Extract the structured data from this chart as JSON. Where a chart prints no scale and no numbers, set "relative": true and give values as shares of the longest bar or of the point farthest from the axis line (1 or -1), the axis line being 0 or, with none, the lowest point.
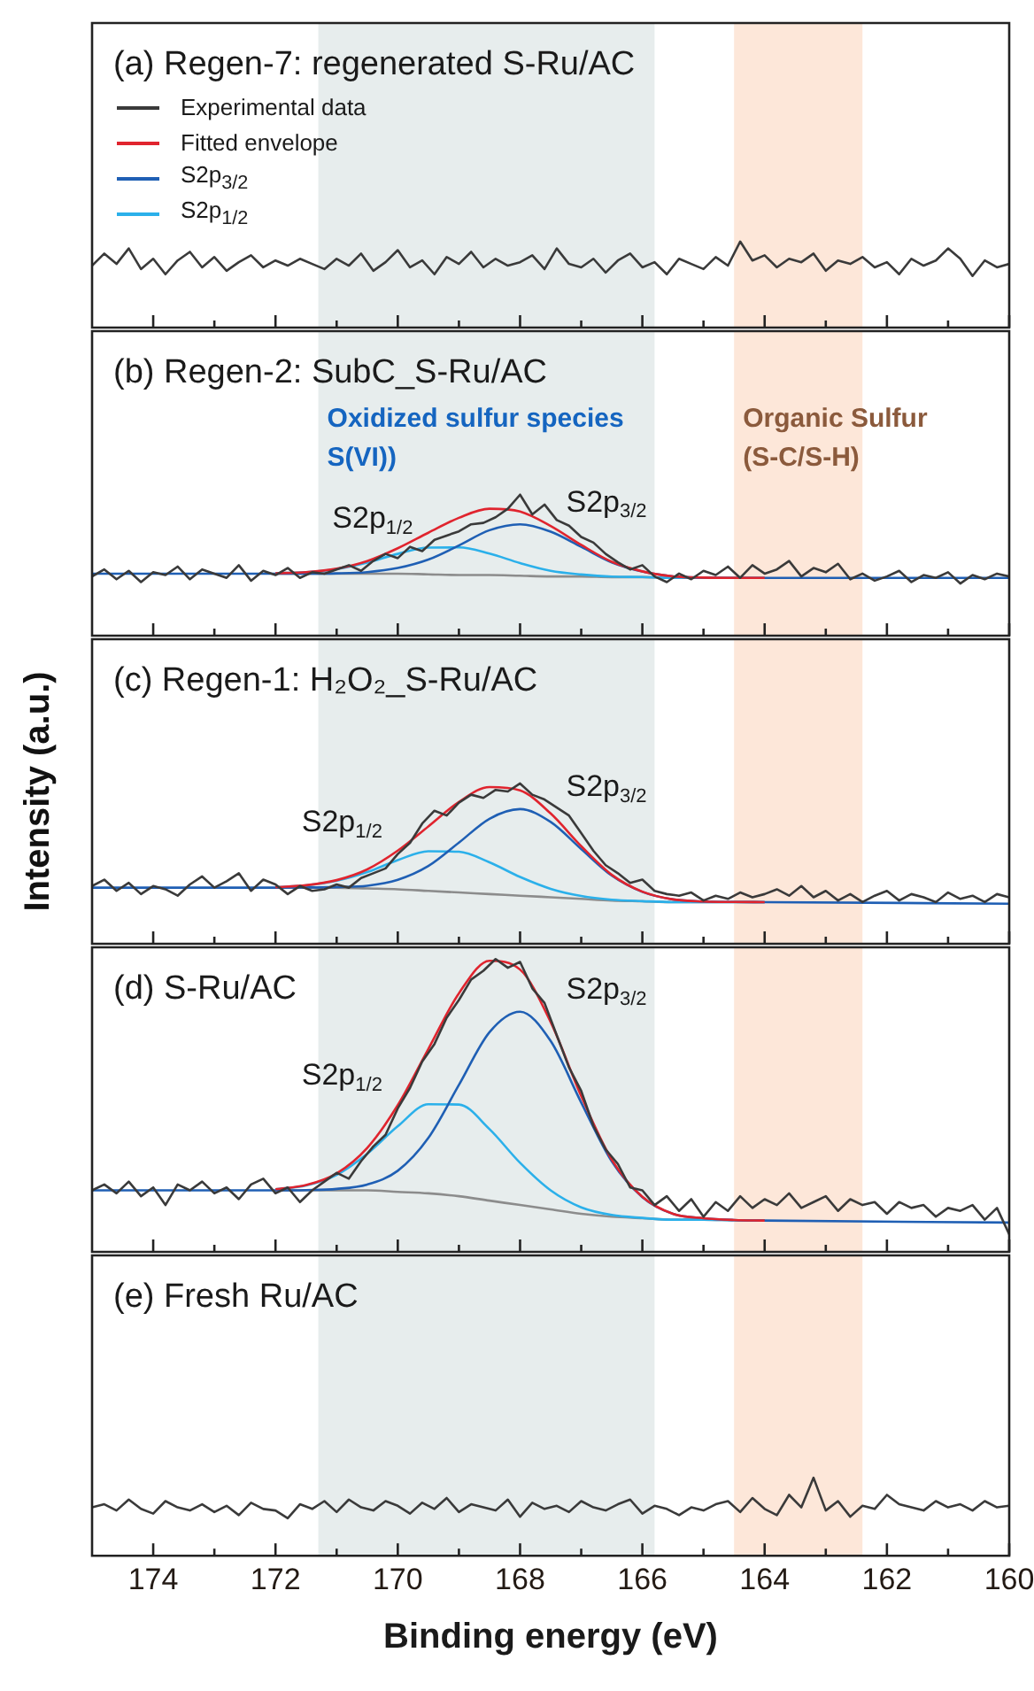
{
  "chart_data": [
    {
      "type": "line",
      "title": "(a) Regen-7: regenerated S-Ru/AC",
      "relative": true,
      "tick_labels": false,
      "x": [
        175,
        174.8,
        174.6,
        174.4,
        174.2,
        174,
        173.8,
        173.6,
        173.4,
        173.2,
        173,
        172.8,
        172.6,
        172.4,
        172.2,
        172,
        171.8,
        171.6,
        171.4,
        171.2,
        171,
        170.8,
        170.6,
        170.4,
        170.2,
        170,
        169.8,
        169.6,
        169.4,
        169.2,
        169,
        168.8,
        168.6,
        168.4,
        168.2,
        168,
        167.8,
        167.6,
        167.4,
        167.2,
        167,
        166.8,
        166.6,
        166.4,
        166.2,
        166,
        165.8,
        165.6,
        165.4,
        165.2,
        165,
        164.8,
        164.6,
        164.4,
        164.2,
        164,
        163.8,
        163.6,
        163.4,
        163.2,
        163,
        162.8,
        162.6,
        162.4,
        162.2,
        162,
        161.8,
        161.6,
        161.4,
        161.2,
        161,
        160.8,
        160.6,
        160.4,
        160.2,
        160
      ],
      "xlim": [
        175,
        160
      ],
      "xticks": [
        174,
        {
          "value": 173,
          "label": null
        },
        172,
        {
          "value": 171,
          "label": null
        },
        170,
        {
          "value": 169,
          "label": null
        },
        168,
        {
          "value": 167,
          "label": null
        },
        166,
        {
          "value": 165,
          "label": null
        },
        164,
        {
          "value": 163,
          "label": null
        },
        162,
        {
          "value": 161,
          "label": null
        },
        160
      ],
      "bands": [
        {
          "axis": "x",
          "from": 171.3,
          "to": 165.8,
          "color": "#e7eded"
        },
        {
          "axis": "x",
          "from": 164.5,
          "to": 162.4,
          "color": "#fde7d9"
        }
      ],
      "series": [
        {
          "color": "#3a3a3a",
          "values": [
            0.72,
            0.86,
            0.74,
            0.92,
            0.68,
            0.8,
            0.62,
            0.78,
            0.88,
            0.7,
            0.82,
            0.66,
            0.76,
            0.84,
            0.7,
            0.78,
            0.72,
            0.8,
            0.74,
            0.68,
            0.8,
            0.72,
            0.86,
            0.66,
            0.76,
            0.9,
            0.7,
            0.78,
            0.62,
            0.82,
            0.74,
            0.88,
            0.7,
            0.8,
            0.72,
            0.76,
            0.84,
            0.68,
            0.92,
            0.74,
            0.7,
            0.8,
            0.64,
            0.78,
            0.86,
            0.7,
            0.76,
            0.62,
            0.8,
            0.74,
            0.68,
            0.82,
            0.72,
            1.0,
            0.78,
            0.84,
            0.7,
            0.8,
            0.76,
            0.86,
            0.66,
            0.78,
            0.74,
            0.82,
            0.7,
            0.76,
            0.62,
            0.8,
            0.72,
            0.78,
            0.92,
            0.8,
            0.6,
            0.78,
            0.7,
            0.74
          ]
        }
      ]
    },
    {
      "type": "line",
      "title": "(b) Regen-2: SubC_S-Ru/AC",
      "relative": true,
      "tick_labels": false,
      "legend": "top left",
      "x": [
        175,
        174.8,
        174.6,
        174.4,
        174.2,
        174,
        173.8,
        173.6,
        173.4,
        173.2,
        173,
        172.8,
        172.6,
        172.4,
        172.2,
        172,
        171.8,
        171.6,
        171.4,
        171.2,
        171,
        170.8,
        170.6,
        170.4,
        170.2,
        170,
        169.8,
        169.6,
        169.4,
        169.2,
        169,
        168.8,
        168.6,
        168.4,
        168.2,
        168,
        167.8,
        167.6,
        167.4,
        167.2,
        167,
        166.8,
        166.6,
        166.4,
        166.2,
        166,
        165.8,
        165.6,
        165.4,
        165.2,
        165,
        164.8,
        164.6,
        164.4,
        164.2,
        164,
        163.8,
        163.6,
        163.4,
        163.2,
        163,
        162.8,
        162.6,
        162.4,
        162.2,
        162,
        161.8,
        161.6,
        161.4,
        161.2,
        161,
        160.8,
        160.6,
        160.4,
        160.2,
        160
      ],
      "xlim": [
        175,
        160
      ],
      "xticks": [
        174,
        {
          "value": 173,
          "label": null
        },
        172,
        {
          "value": 171,
          "label": null
        },
        170,
        {
          "value": 169,
          "label": null
        },
        168,
        {
          "value": 167,
          "label": null
        },
        166,
        {
          "value": 165,
          "label": null
        },
        164,
        {
          "value": 163,
          "label": null
        },
        162,
        {
          "value": 161,
          "label": null
        },
        160
      ],
      "bands": [
        {
          "axis": "x",
          "from": 171.3,
          "to": 165.8,
          "color": "#e7eded",
          "label": "Oxidized sulfur species\nS(VI))"
        },
        {
          "axis": "x",
          "from": 164.5,
          "to": 162.4,
          "color": "#fde7d9",
          "label": "Organic Sulfur\n(S-C/S-H)"
        }
      ],
      "series": [
        {
          "name": "Experimental data",
          "color": "#3a3a3a",
          "values": [
            0.42,
            0.47,
            0.4,
            0.46,
            0.38,
            0.45,
            0.43,
            0.49,
            0.4,
            0.47,
            0.44,
            0.41,
            0.5,
            0.39,
            0.46,
            0.43,
            0.48,
            0.41,
            0.45,
            0.44,
            0.47,
            0.5,
            0.46,
            0.53,
            0.58,
            0.55,
            0.63,
            0.6,
            0.68,
            0.71,
            0.74,
            0.79,
            0.8,
            0.84,
            0.9,
            1.0,
            0.86,
            0.93,
            0.82,
            0.78,
            0.7,
            0.66,
            0.58,
            0.52,
            0.47,
            0.5,
            0.42,
            0.38,
            0.44,
            0.4,
            0.46,
            0.43,
            0.49,
            0.41,
            0.5,
            0.44,
            0.47,
            0.53,
            0.42,
            0.48,
            0.45,
            0.51,
            0.4,
            0.44,
            0.39,
            0.42,
            0.46,
            0.38,
            0.43,
            0.41,
            0.45,
            0.37,
            0.43,
            0.4,
            0.44,
            0.42
          ]
        },
        {
          "name": "Fitted envelope",
          "color": "#e0242e",
          "x": [
            172,
            171.5,
            171,
            170.5,
            170,
            169.5,
            169,
            168.5,
            168,
            167.5,
            167,
            166.5,
            166,
            165.5,
            165,
            164.5,
            164
          ],
          "values": [
            0.443,
            0.451,
            0.475,
            0.529,
            0.62,
            0.73,
            0.836,
            0.9,
            0.88,
            0.778,
            0.644,
            0.524,
            0.456,
            0.421,
            0.412,
            0.41,
            0.41
          ]
        },
        {
          "name": "S2p$_{3/2}$",
          "color": "#1f5fb4",
          "x": [
            175,
            172,
            171.5,
            171,
            170.5,
            170,
            169.5,
            169,
            168.5,
            168,
            167.5,
            167,
            166.5,
            166,
            165.5,
            165,
            164.5,
            164,
            160
          ],
          "values": [
            0.44,
            0.44,
            0.44,
            0.442,
            0.451,
            0.48,
            0.54,
            0.64,
            0.748,
            0.79,
            0.738,
            0.63,
            0.52,
            0.455,
            0.421,
            0.412,
            0.41,
            0.41,
            0.41
          ]
        },
        {
          "name": "S2p$_{1/2}$",
          "color": "#2bb0ea",
          "x": [
            172,
            171.5,
            171,
            170.5,
            170,
            169.5,
            169,
            168.5,
            168,
            167.5,
            167,
            166.5,
            166,
            165.5,
            165
          ],
          "values": [
            0.443,
            0.451,
            0.473,
            0.518,
            0.58,
            0.625,
            0.626,
            0.582,
            0.515,
            0.46,
            0.434,
            0.419,
            0.416,
            0.41,
            0.41
          ]
        },
        {
          "color": "#8c8c8c",
          "x": [
            172,
            171.5,
            171,
            170.5,
            170,
            169.5,
            169,
            168.5,
            168,
            167.5,
            167,
            166.5,
            166,
            165.5,
            165,
            164.5,
            164
          ],
          "values": [
            0.44,
            0.44,
            0.44,
            0.44,
            0.44,
            0.435,
            0.43,
            0.43,
            0.425,
            0.42,
            0.42,
            0.415,
            0.415,
            0.41,
            0.41,
            0.41,
            0.41
          ]
        }
      ]
    },
    {
      "type": "line",
      "title": "(c) Regen-1: H₂O₂_S-Ru/AC",
      "ylabel": "Intensity (a.u.)",
      "relative": true,
      "tick_labels": false,
      "x": [
        175,
        174.8,
        174.6,
        174.4,
        174.2,
        174,
        173.8,
        173.6,
        173.4,
        173.2,
        173,
        172.8,
        172.6,
        172.4,
        172.2,
        172,
        171.8,
        171.6,
        171.4,
        171.2,
        171,
        170.8,
        170.6,
        170.4,
        170.2,
        170,
        169.8,
        169.6,
        169.4,
        169.2,
        169,
        168.8,
        168.6,
        168.4,
        168.2,
        168,
        167.8,
        167.6,
        167.4,
        167.2,
        167,
        166.8,
        166.6,
        166.4,
        166.2,
        166,
        165.8,
        165.6,
        165.4,
        165.2,
        165,
        164.8,
        164.6,
        164.4,
        164.2,
        164,
        163.8,
        163.6,
        163.4,
        163.2,
        163,
        162.8,
        162.6,
        162.4,
        162.2,
        162,
        161.8,
        161.6,
        161.4,
        161.2,
        161,
        160.8,
        160.6,
        160.4,
        160.2,
        160
      ],
      "xlim": [
        175,
        160
      ],
      "xticks": [
        174,
        {
          "value": 173,
          "label": null
        },
        172,
        {
          "value": 171,
          "label": null
        },
        170,
        {
          "value": 169,
          "label": null
        },
        168,
        {
          "value": 167,
          "label": null
        },
        166,
        {
          "value": 165,
          "label": null
        },
        164,
        {
          "value": 163,
          "label": null
        },
        162,
        {
          "value": 161,
          "label": null
        },
        160
      ],
      "bands": [
        {
          "axis": "x",
          "from": 171.3,
          "to": 165.8,
          "color": "#e7eded"
        },
        {
          "axis": "x",
          "from": 164.5,
          "to": 162.4,
          "color": "#fde7d9"
        }
      ],
      "series": [
        {
          "color": "#3a3a3a",
          "values": [
            0.36,
            0.4,
            0.33,
            0.38,
            0.31,
            0.36,
            0.34,
            0.3,
            0.37,
            0.42,
            0.35,
            0.39,
            0.44,
            0.33,
            0.4,
            0.37,
            0.31,
            0.36,
            0.33,
            0.34,
            0.37,
            0.35,
            0.41,
            0.44,
            0.47,
            0.56,
            0.63,
            0.75,
            0.83,
            0.8,
            0.88,
            0.93,
            0.91,
            0.96,
            0.95,
            1.0,
            0.93,
            0.9,
            0.85,
            0.8,
            0.69,
            0.58,
            0.49,
            0.44,
            0.38,
            0.4,
            0.33,
            0.31,
            0.3,
            0.32,
            0.27,
            0.3,
            0.28,
            0.32,
            0.29,
            0.31,
            0.34,
            0.3,
            0.36,
            0.29,
            0.33,
            0.27,
            0.31,
            0.26,
            0.3,
            0.33,
            0.27,
            0.31,
            0.29,
            0.26,
            0.32,
            0.28,
            0.3,
            0.26,
            0.31,
            0.29
          ]
        },
        {
          "color": "#e0242e",
          "x": [
            172,
            171.5,
            171,
            170.5,
            170,
            169.5,
            169,
            168.5,
            168,
            167.5,
            167,
            166.5,
            166,
            165.5,
            165,
            164.5,
            164
          ],
          "values": [
            0.353,
            0.365,
            0.397,
            0.464,
            0.581,
            0.732,
            0.885,
            0.978,
            0.957,
            0.813,
            0.609,
            0.43,
            0.325,
            0.277,
            0.264,
            0.261,
            0.26
          ]
        },
        {
          "name": "S2p$_{3/2}$",
          "color": "#1f5fb4",
          "x": [
            175,
            172,
            171.5,
            171,
            170.5,
            170,
            169.5,
            169,
            168.5,
            168,
            167.5,
            167,
            166.5,
            166,
            165.5,
            165,
            164.5,
            164,
            160
          ],
          "values": [
            0.35,
            0.35,
            0.351,
            0.354,
            0.362,
            0.399,
            0.485,
            0.631,
            0.78,
            0.84,
            0.76,
            0.591,
            0.425,
            0.324,
            0.277,
            0.264,
            0.261,
            0.26,
            0.25
          ]
        },
        {
          "name": "S2p$_{1/2}$",
          "color": "#2bb0ea",
          "x": [
            172,
            171.5,
            171,
            170.5,
            170,
            169.5,
            169,
            168.5,
            168,
            167.5,
            167,
            166.5,
            166,
            165.5,
            165,
            164.5,
            164
          ],
          "values": [
            0.353,
            0.364,
            0.393,
            0.447,
            0.522,
            0.577,
            0.574,
            0.508,
            0.417,
            0.343,
            0.298,
            0.275,
            0.266,
            0.26,
            0.26,
            0.26,
            0.26
          ]
        },
        {
          "color": "#8c8c8c",
          "x": [
            172,
            171.5,
            171,
            170.5,
            170,
            169.5,
            169,
            168.5,
            168,
            167.5,
            167,
            166.5,
            166,
            165.5,
            165,
            164.5,
            164
          ],
          "values": [
            0.35,
            0.35,
            0.35,
            0.345,
            0.34,
            0.33,
            0.32,
            0.31,
            0.3,
            0.29,
            0.28,
            0.27,
            0.265,
            0.26,
            0.26,
            0.26,
            0.26
          ]
        }
      ]
    },
    {
      "type": "line",
      "title": "(d) S-Ru/AC",
      "relative": true,
      "tick_labels": false,
      "x": [
        175,
        174.8,
        174.6,
        174.4,
        174.2,
        174,
        173.8,
        173.6,
        173.4,
        173.2,
        173,
        172.8,
        172.6,
        172.4,
        172.2,
        172,
        171.8,
        171.6,
        171.4,
        171.2,
        171,
        170.8,
        170.6,
        170.4,
        170.2,
        170,
        169.8,
        169.6,
        169.4,
        169.2,
        169,
        168.8,
        168.6,
        168.4,
        168.2,
        168,
        167.8,
        167.6,
        167.4,
        167.2,
        167,
        166.8,
        166.6,
        166.4,
        166.2,
        166,
        165.8,
        165.6,
        165.4,
        165.2,
        165,
        164.8,
        164.6,
        164.4,
        164.2,
        164,
        163.8,
        163.6,
        163.4,
        163.2,
        163,
        162.8,
        162.6,
        162.4,
        162.2,
        162,
        161.8,
        161.6,
        161.4,
        161.2,
        161,
        160.8,
        160.6,
        160.4,
        160.2,
        160
      ],
      "xlim": [
        175,
        160
      ],
      "xticks": [
        174,
        {
          "value": 173,
          "label": null
        },
        172,
        {
          "value": 171,
          "label": null
        },
        170,
        {
          "value": 169,
          "label": null
        },
        168,
        {
          "value": 167,
          "label": null
        },
        166,
        {
          "value": 165,
          "label": null
        },
        164,
        {
          "value": 163,
          "label": null
        },
        162,
        {
          "value": 161,
          "label": null
        },
        160
      ],
      "bands": [
        {
          "axis": "x",
          "from": 171.3,
          "to": 165.8,
          "color": "#e7eded"
        },
        {
          "axis": "x",
          "from": 164.5,
          "to": 162.4,
          "color": "#fde7d9"
        }
      ],
      "series": [
        {
          "color": "#3a3a3a",
          "values": [
            0.21,
            0.23,
            0.2,
            0.24,
            0.19,
            0.22,
            0.16,
            0.23,
            0.21,
            0.24,
            0.2,
            0.22,
            0.18,
            0.23,
            0.25,
            0.2,
            0.22,
            0.17,
            0.21,
            0.24,
            0.27,
            0.25,
            0.31,
            0.36,
            0.4,
            0.49,
            0.56,
            0.65,
            0.71,
            0.8,
            0.86,
            0.93,
            0.96,
            1.0,
            0.97,
            0.99,
            0.9,
            0.85,
            0.74,
            0.63,
            0.55,
            0.43,
            0.35,
            0.3,
            0.22,
            0.21,
            0.16,
            0.19,
            0.14,
            0.18,
            0.12,
            0.17,
            0.14,
            0.19,
            0.15,
            0.18,
            0.16,
            0.2,
            0.15,
            0.17,
            0.19,
            0.14,
            0.18,
            0.16,
            0.17,
            0.13,
            0.17,
            0.15,
            0.16,
            0.12,
            0.15,
            0.14,
            0.16,
            0.11,
            0.15,
            0.06
          ]
        },
        {
          "color": "#e0242e",
          "x": [
            172,
            171.5,
            171,
            170.5,
            170,
            169.5,
            169,
            168.5,
            168,
            167.5,
            167,
            166.5,
            166,
            165.5,
            165,
            164.5,
            164
          ],
          "values": [
            0.214,
            0.228,
            0.268,
            0.355,
            0.501,
            0.693,
            0.883,
            0.994,
            0.964,
            0.785,
            0.532,
            0.315,
            0.188,
            0.13,
            0.115,
            0.109,
            0.107
          ]
        },
        {
          "name": "S2p$_{3/2}$",
          "color": "#1f5fb4",
          "x": [
            175,
            172,
            171.5,
            171,
            170.5,
            170,
            169.5,
            169,
            168.5,
            168,
            167.5,
            167,
            166.5,
            166,
            165.5,
            165,
            164.5,
            164,
            160
          ],
          "values": [
            0.21,
            0.21,
            0.211,
            0.215,
            0.23,
            0.277,
            0.389,
            0.57,
            0.75,
            0.82,
            0.72,
            0.51,
            0.309,
            0.187,
            0.13,
            0.115,
            0.109,
            0.107,
            0.1
          ]
        },
        {
          "name": "S2p$_{1/2}$",
          "color": "#2bb0ea",
          "x": [
            172,
            171.5,
            171,
            170.5,
            170,
            169.5,
            169,
            168.5,
            168,
            167.5,
            167,
            166.5,
            166,
            165.5,
            165,
            164.5,
            164
          ],
          "values": [
            0.214,
            0.227,
            0.263,
            0.335,
            0.429,
            0.504,
            0.503,
            0.419,
            0.304,
            0.21,
            0.152,
            0.126,
            0.116,
            0.11,
            0.11,
            0.108,
            0.107
          ]
        },
        {
          "color": "#8c8c8c",
          "x": [
            172,
            171.5,
            171,
            170.5,
            170,
            169.5,
            169,
            168.5,
            168,
            167.5,
            167,
            166.5,
            166,
            165.5,
            165,
            164.5,
            164
          ],
          "values": [
            0.21,
            0.21,
            0.21,
            0.21,
            0.205,
            0.2,
            0.19,
            0.175,
            0.16,
            0.145,
            0.13,
            0.12,
            0.115,
            0.11,
            0.11,
            0.108,
            0.107
          ]
        }
      ]
    },
    {
      "type": "line",
      "title": "(e) Fresh Ru/AC",
      "xlabel": "Binding energy (eV)",
      "relative": true,
      "tick_labels": "x",
      "x": [
        175,
        174.8,
        174.6,
        174.4,
        174.2,
        174,
        173.8,
        173.6,
        173.4,
        173.2,
        173,
        172.8,
        172.6,
        172.4,
        172.2,
        172,
        171.8,
        171.6,
        171.4,
        171.2,
        171,
        170.8,
        170.6,
        170.4,
        170.2,
        170,
        169.8,
        169.6,
        169.4,
        169.2,
        169,
        168.8,
        168.6,
        168.4,
        168.2,
        168,
        167.8,
        167.6,
        167.4,
        167.2,
        167,
        166.8,
        166.6,
        166.4,
        166.2,
        166,
        165.8,
        165.6,
        165.4,
        165.2,
        165,
        164.8,
        164.6,
        164.4,
        164.2,
        164,
        163.8,
        163.6,
        163.4,
        163.2,
        163,
        162.8,
        162.6,
        162.4,
        162.2,
        162,
        161.8,
        161.6,
        161.4,
        161.2,
        161,
        160.8,
        160.6,
        160.4,
        160.2,
        160
      ],
      "xlim": [
        175,
        160
      ],
      "xticks": [
        174,
        {
          "value": 173,
          "label": null
        },
        172,
        {
          "value": 171,
          "label": null
        },
        170,
        {
          "value": 169,
          "label": null
        },
        168,
        {
          "value": 167,
          "label": null
        },
        166,
        {
          "value": 165,
          "label": null
        },
        164,
        {
          "value": 163,
          "label": null
        },
        162,
        {
          "value": 161,
          "label": null
        },
        160
      ],
      "bands": [
        {
          "axis": "x",
          "from": 171.3,
          "to": 165.8,
          "color": "#e7eded"
        },
        {
          "axis": "x",
          "from": 164.5,
          "to": 162.4,
          "color": "#fde7d9"
        }
      ],
      "series": [
        {
          "color": "#3a3a3a",
          "values": [
            0.62,
            0.66,
            0.58,
            0.72,
            0.6,
            0.54,
            0.7,
            0.62,
            0.58,
            0.66,
            0.56,
            0.64,
            0.52,
            0.68,
            0.6,
            0.58,
            0.48,
            0.66,
            0.6,
            0.7,
            0.56,
            0.72,
            0.62,
            0.58,
            0.7,
            0.64,
            0.54,
            0.68,
            0.6,
            0.74,
            0.56,
            0.66,
            0.62,
            0.58,
            0.72,
            0.5,
            0.68,
            0.6,
            0.64,
            0.56,
            0.7,
            0.62,
            0.58,
            0.66,
            0.72,
            0.54,
            0.64,
            0.6,
            0.52,
            0.62,
            0.58,
            0.66,
            0.7,
            0.56,
            0.74,
            0.6,
            0.52,
            0.78,
            0.62,
            1.0,
            0.58,
            0.7,
            0.5,
            0.64,
            0.6,
            0.78,
            0.66,
            0.62,
            0.58,
            0.7,
            0.62,
            0.66,
            0.58,
            0.7,
            0.62,
            0.64
          ]
        }
      ]
    }
  ]
}
